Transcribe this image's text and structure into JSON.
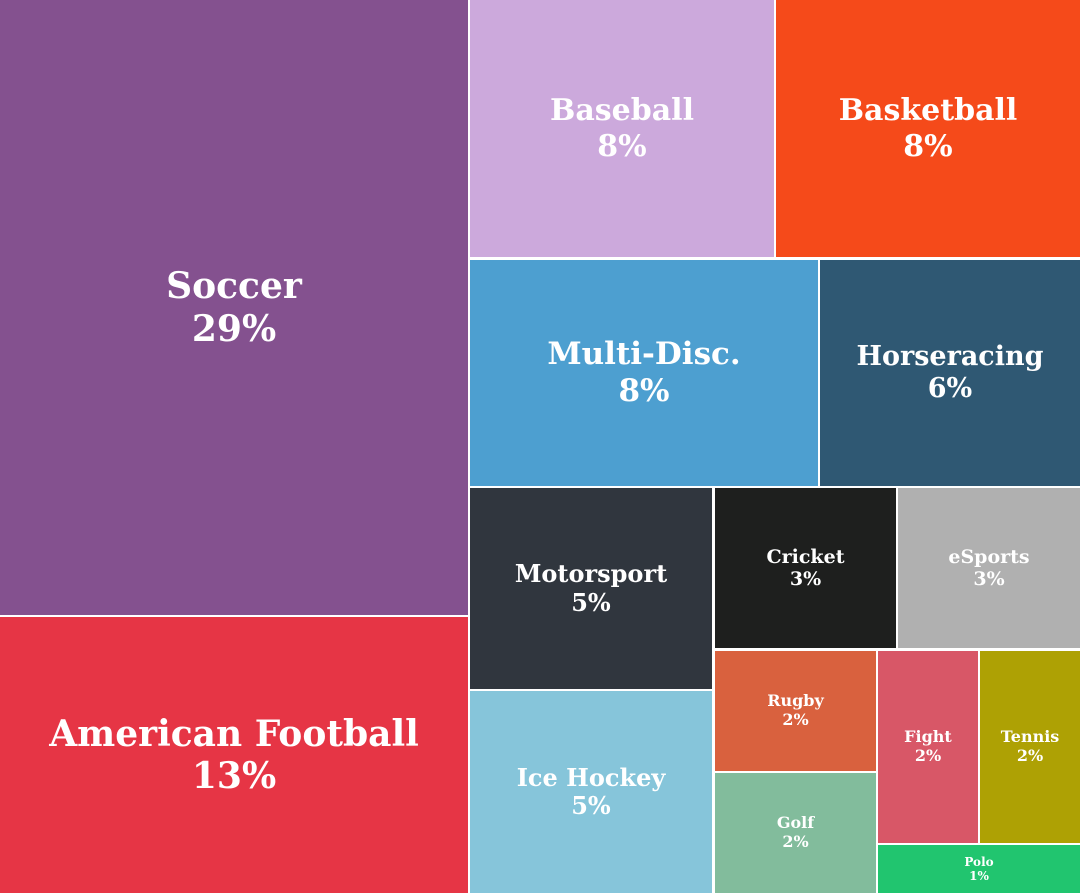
{
  "chart_data": {
    "type": "treemap",
    "unit": "%",
    "items": [
      {
        "name": "Soccer",
        "label": "29%",
        "value": 29,
        "color": "#84518F"
      },
      {
        "name": "American Football",
        "label": "13%",
        "value": 13,
        "color": "#E63545"
      },
      {
        "name": "Baseball",
        "label": "8%",
        "value": 8,
        "color": "#CCA9DC"
      },
      {
        "name": "Basketball",
        "label": "8%",
        "value": 8,
        "color": "#F54A1A"
      },
      {
        "name": "Multi-Disc.",
        "label": "8%",
        "value": 8,
        "color": "#4D9FD0"
      },
      {
        "name": "Horseracing",
        "label": "6%",
        "value": 6,
        "color": "#2F5873"
      },
      {
        "name": "Motorsport",
        "label": "5%",
        "value": 5,
        "color": "#30363E"
      },
      {
        "name": "Ice Hockey",
        "label": "5%",
        "value": 5,
        "color": "#86C5DA"
      },
      {
        "name": "Cricket",
        "label": "3%",
        "value": 3,
        "color": "#1E1F1E"
      },
      {
        "name": "eSports",
        "label": "3%",
        "value": 3,
        "color": "#B0B0B0"
      },
      {
        "name": "Rugby",
        "label": "2%",
        "value": 2,
        "color": "#D9613E"
      },
      {
        "name": "Golf",
        "label": "2%",
        "value": 2,
        "color": "#82BC9C"
      },
      {
        "name": "Fight",
        "label": "2%",
        "value": 2,
        "color": "#D85767"
      },
      {
        "name": "Tennis",
        "label": "2%",
        "value": 2,
        "color": "#AEA104"
      },
      {
        "name": "Polo",
        "label": "1%",
        "value": 1,
        "color": "#21C56F"
      }
    ]
  }
}
